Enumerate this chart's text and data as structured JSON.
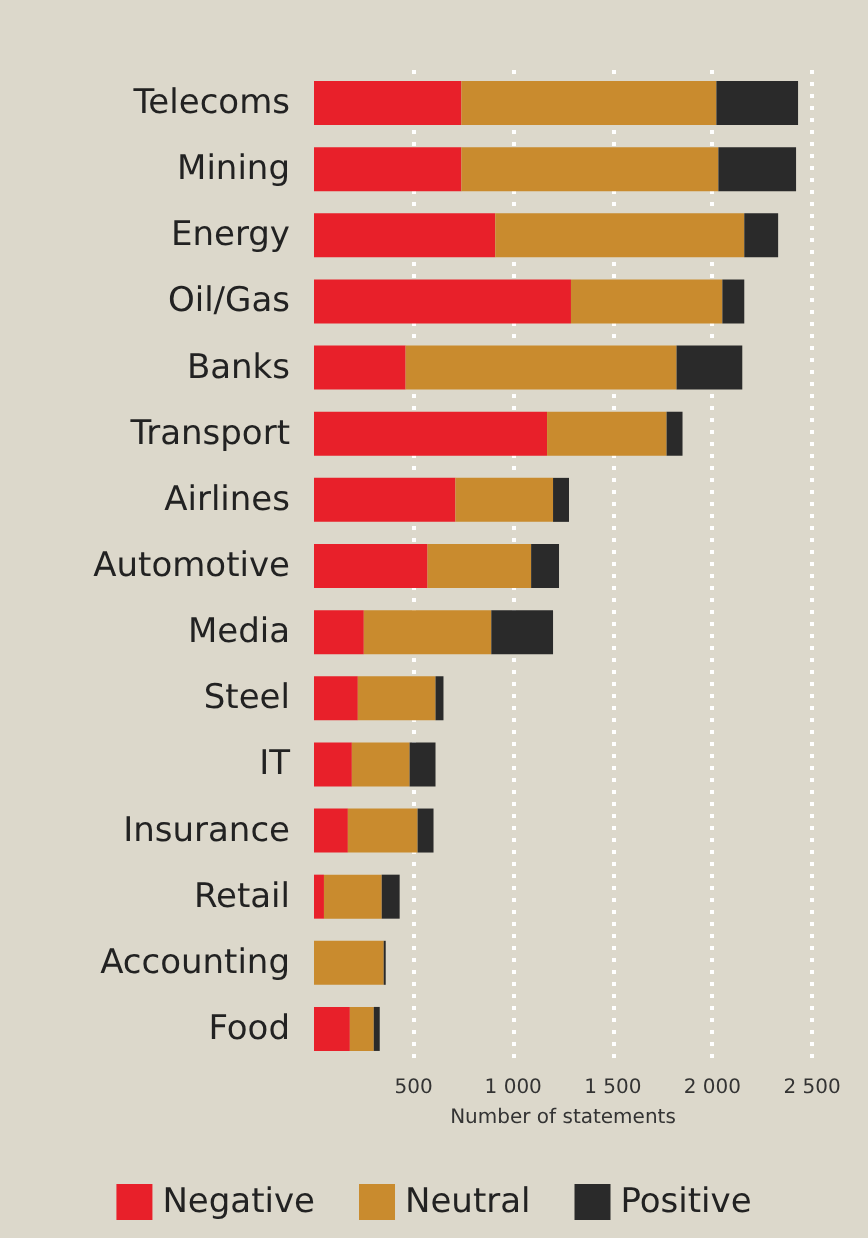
{
  "chart_data": {
    "type": "bar",
    "orientation": "horizontal",
    "stacked": true,
    "xlabel": "Number of statements",
    "categories": [
      "Telecoms",
      "Mining",
      "Energy",
      "Oil/Gas",
      "Banks",
      "Transport",
      "Airlines",
      "Automotive",
      "Media",
      "Steel",
      "IT",
      "Insurance",
      "Retail",
      "Accounting",
      "Food"
    ],
    "series": [
      {
        "name": "Negative",
        "color": "#e8202a",
        "values": [
          740,
          740,
          910,
          1290,
          460,
          1170,
          710,
          570,
          250,
          220,
          190,
          170,
          50,
          0,
          180
        ]
      },
      {
        "name": "Neutral",
        "color": "#c98b2e",
        "values": [
          1280,
          1290,
          1250,
          760,
          1360,
          600,
          490,
          520,
          640,
          390,
          290,
          350,
          290,
          350,
          120
        ]
      },
      {
        "name": "Positive",
        "color": "#2a2a2a",
        "values": [
          410,
          390,
          170,
          110,
          330,
          80,
          80,
          140,
          310,
          40,
          130,
          80,
          90,
          10,
          30
        ]
      }
    ],
    "xlim": [
      0,
      2500
    ],
    "xticks": [
      {
        "value": 500,
        "label": "500"
      },
      {
        "value": 1000,
        "label": "1 000"
      },
      {
        "value": 1500,
        "label": "1 500"
      },
      {
        "value": 2000,
        "label": "2 000"
      },
      {
        "value": 2500,
        "label": "2 500"
      }
    ],
    "grid": "x",
    "legend": "bottom"
  }
}
